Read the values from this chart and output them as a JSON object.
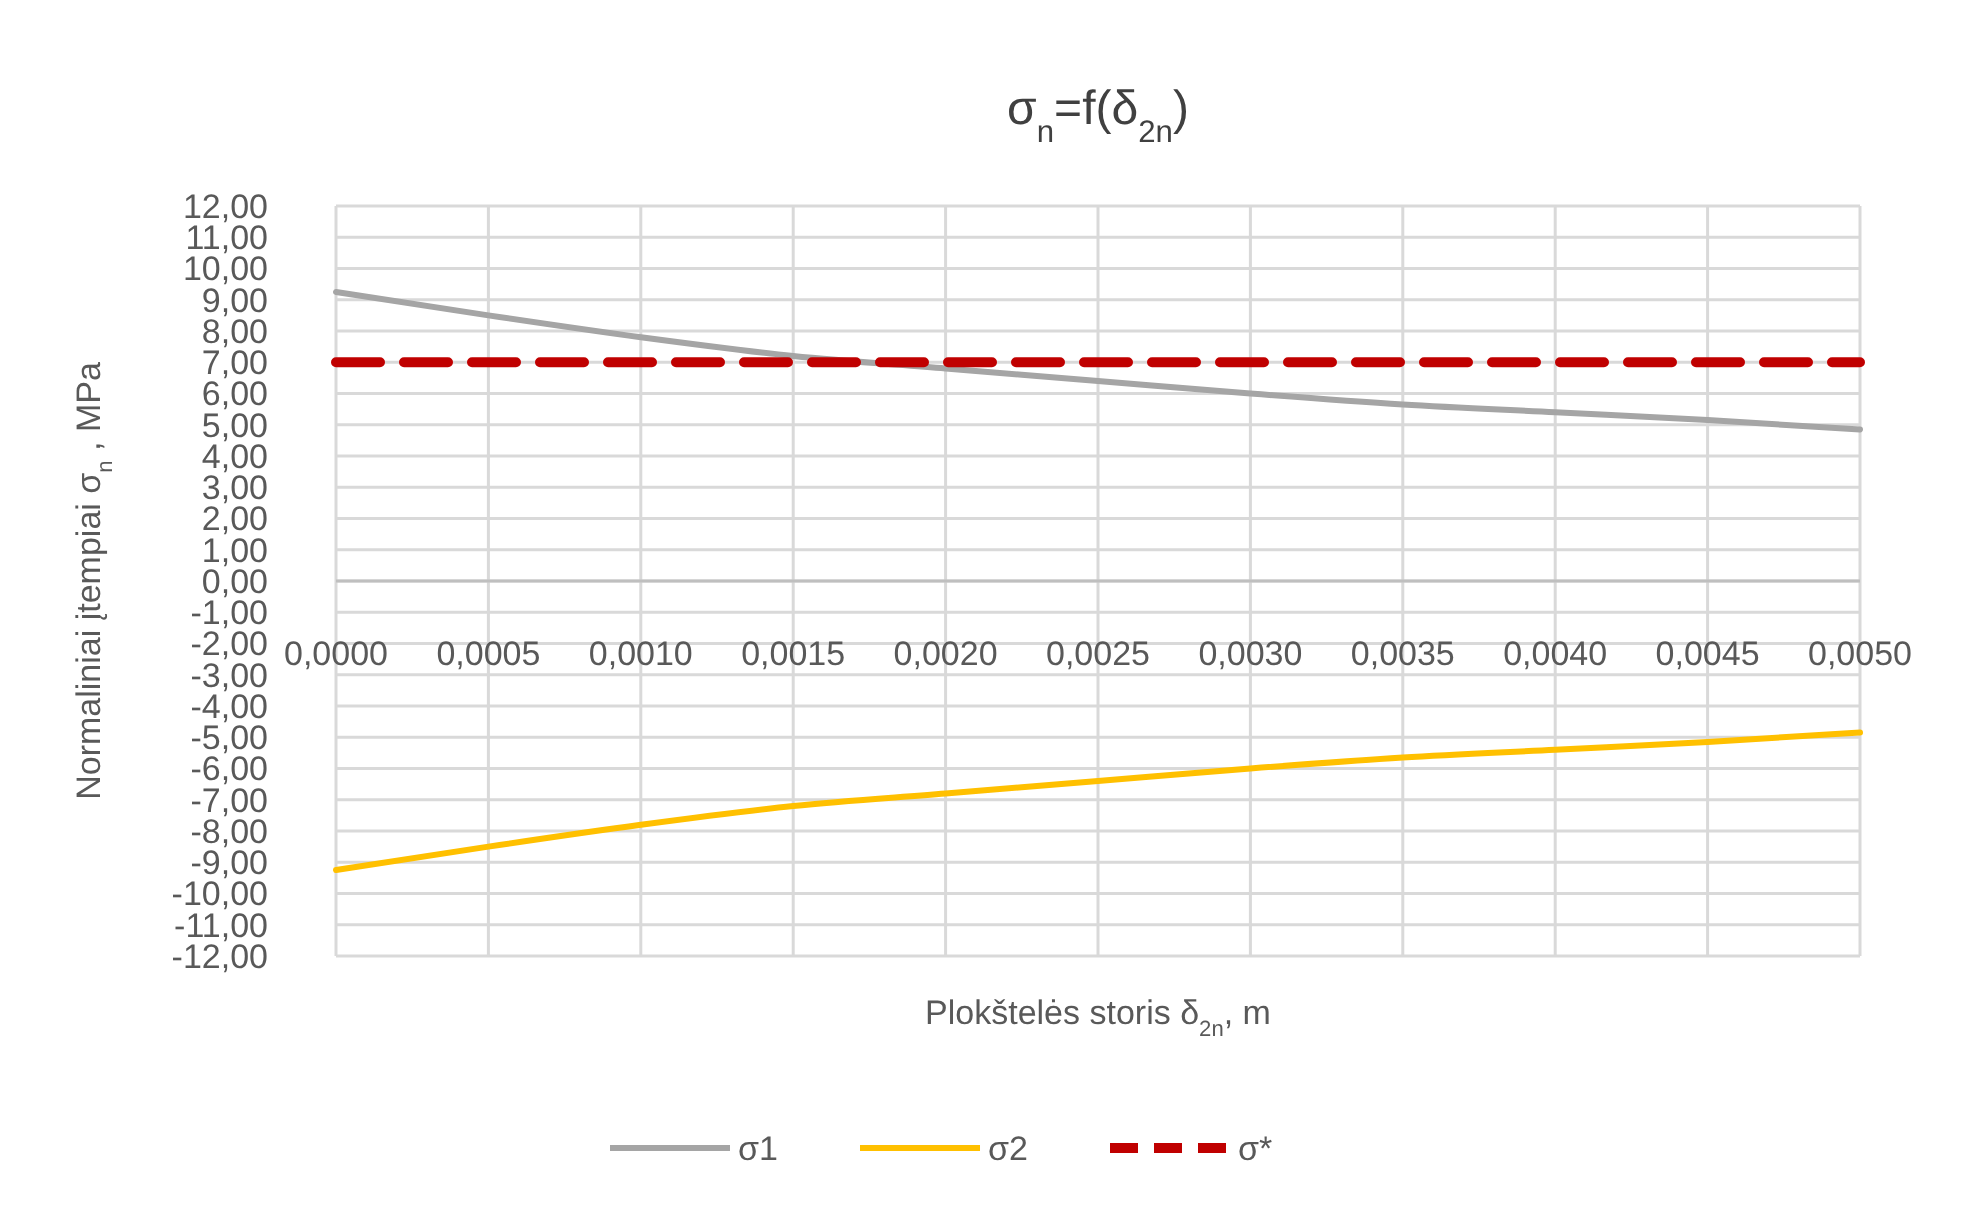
{
  "chart_data": {
    "type": "line",
    "title": "σ$_{n}$=f(δ$_{2n}$)",
    "xlabel": "Plokštelės storis δ$_{2n}$, m",
    "ylabel": "Normaliniai įtempiai σ$_{n}$ , MPa",
    "x": [
      0,
      0.0005,
      0.001,
      0.0015,
      0.002,
      0.0025,
      0.003,
      0.0035,
      0.004,
      0.0045,
      0.005
    ],
    "series": [
      {
        "name": "σ1",
        "color": "#a5a5a5",
        "values": [
          9.25,
          8.5,
          7.8,
          7.2,
          6.8,
          6.4,
          6.0,
          5.65,
          5.4,
          5.15,
          4.85
        ]
      },
      {
        "name": "σ2",
        "color": "#ffc000",
        "values": [
          -9.25,
          -8.5,
          -7.8,
          -7.2,
          -6.8,
          -6.4,
          -6.0,
          -5.65,
          -5.4,
          -5.15,
          -4.85
        ]
      },
      {
        "name": "σ*",
        "color": "#c00000",
        "line_style": "dashed",
        "values": [
          7,
          7,
          7,
          7,
          7,
          7,
          7,
          7,
          7,
          7,
          7
        ]
      }
    ],
    "xlim": [
      0,
      0.005
    ],
    "xticks": [
      {
        "value": 0,
        "label": "0,0000"
      },
      {
        "value": 0.0005,
        "label": "0,0005"
      },
      {
        "value": 0.001,
        "label": "0,0010"
      },
      {
        "value": 0.0015,
        "label": "0,0015"
      },
      {
        "value": 0.002,
        "label": "0,0020"
      },
      {
        "value": 0.0025,
        "label": "0,0025"
      },
      {
        "value": 0.003,
        "label": "0,0030"
      },
      {
        "value": 0.0035,
        "label": "0,0035"
      },
      {
        "value": 0.004,
        "label": "0,0040"
      },
      {
        "value": 0.0045,
        "label": "0,0045"
      },
      {
        "value": 0.005,
        "label": "0,0050"
      }
    ],
    "ylim": [
      -12,
      12
    ],
    "yticks": [
      {
        "value": -12,
        "label": "-12,00"
      },
      {
        "value": -11,
        "label": "-11,00"
      },
      {
        "value": -10,
        "label": "-10,00"
      },
      {
        "value": -9,
        "label": "-9,00"
      },
      {
        "value": -8,
        "label": "-8,00"
      },
      {
        "value": -7,
        "label": "-7,00"
      },
      {
        "value": -6,
        "label": "-6,00"
      },
      {
        "value": -5,
        "label": "-5,00"
      },
      {
        "value": -4,
        "label": "-4,00"
      },
      {
        "value": -3,
        "label": "-3,00"
      },
      {
        "value": -2,
        "label": "-2,00"
      },
      {
        "value": -1,
        "label": "-1,00"
      },
      {
        "value": 0,
        "label": "0,00"
      },
      {
        "value": 1,
        "label": "1,00"
      },
      {
        "value": 2,
        "label": "2,00"
      },
      {
        "value": 3,
        "label": "3,00"
      },
      {
        "value": 4,
        "label": "4,00"
      },
      {
        "value": 5,
        "label": "5,00"
      },
      {
        "value": 6,
        "label": "6,00"
      },
      {
        "value": 7,
        "label": "7,00"
      },
      {
        "value": 8,
        "label": "8,00"
      },
      {
        "value": 9,
        "label": "9,00"
      },
      {
        "value": 10,
        "label": "10,00"
      },
      {
        "value": 11,
        "label": "11,00"
      },
      {
        "value": 12,
        "label": "12,00"
      }
    ],
    "grid": true,
    "legend": "bottom",
    "marker": "none",
    "line_style": "solid"
  }
}
